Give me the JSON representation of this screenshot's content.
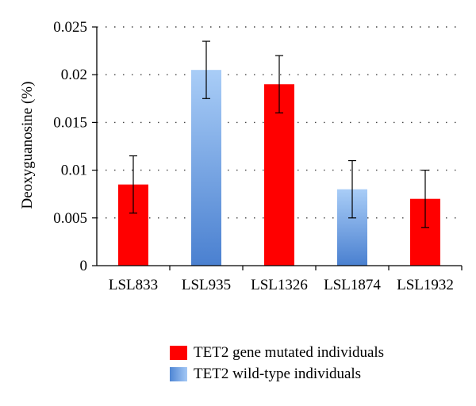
{
  "chart_data": {
    "type": "bar",
    "title": "",
    "xlabel": "",
    "ylabel": "Deoxyguanosine (%)",
    "ylim": [
      0,
      0.025
    ],
    "yticks": [
      0,
      0.005,
      0.01,
      0.015,
      0.02,
      0.025
    ],
    "ytick_labels": [
      "0",
      "0.005",
      "0.01",
      "0.015",
      "0.02",
      "0.025"
    ],
    "grid": "horizontal-dotted",
    "categories": [
      "LSL833",
      "LSL935",
      "LSL1326",
      "LSL1874",
      "LSL1932"
    ],
    "values": [
      0.0085,
      0.0205,
      0.019,
      0.008,
      0.007
    ],
    "errors": [
      0.003,
      0.003,
      0.003,
      0.003,
      0.003
    ],
    "groups": [
      "mutated",
      "wild-type",
      "mutated",
      "wild-type",
      "mutated"
    ],
    "legend": {
      "placement": "bottom",
      "entries": [
        {
          "key": "mutated",
          "label": "TET2 gene mutated individuals",
          "color": "#ff0000"
        },
        {
          "key": "wild-type",
          "label": "TET2 wild-type individuals",
          "color": "#4f86d4"
        }
      ]
    }
  }
}
